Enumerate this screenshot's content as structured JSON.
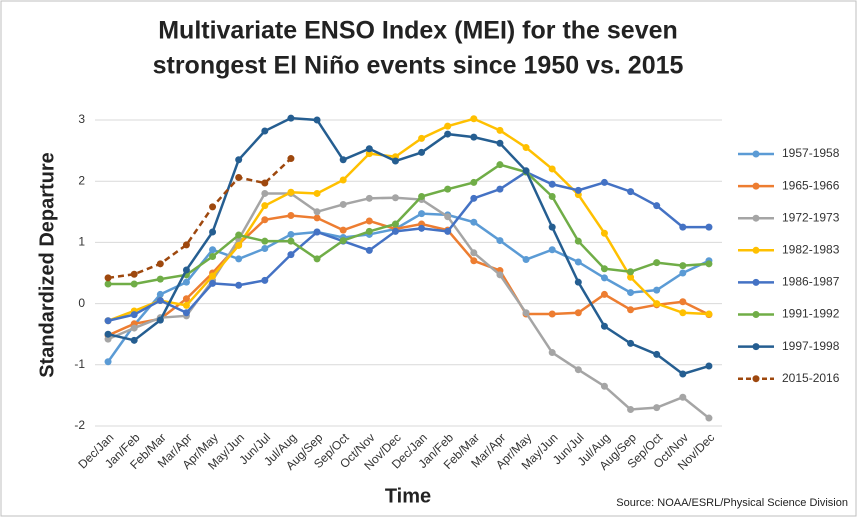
{
  "chart_data": {
    "type": "line",
    "title": "Multivariate ENSO Index (MEI) for the seven",
    "subtitle": "strongest El Niño events since 1950 vs. 2015",
    "x_label": "Time",
    "y_label": "Standardized Departure",
    "source": "Source: NOAA/ESRL/Physical Science Division",
    "categories": [
      "Dec/Jan",
      "Jan/Feb",
      "Feb/Mar",
      "Mar/Apr",
      "Apr/May",
      "May/Jun",
      "Jun/Jul",
      "Jul/Aug",
      "Aug/Sep",
      "Sep/Oct",
      "Oct/Nov",
      "Nov/Dec",
      "Dec/Jan",
      "Jan/Feb",
      "Feb/Mar",
      "Mar/Apr",
      "Apr/May",
      "May/Jun",
      "Jun/Jul",
      "Jul/Aug",
      "Aug/Sep",
      "Sep/Oct",
      "Oct/Nov",
      "Nov/Dec"
    ],
    "ylim": [
      -2,
      3
    ],
    "yticks": [
      -2,
      -1,
      0,
      1,
      2,
      3
    ],
    "grid": true,
    "legend": "right",
    "series": [
      {
        "name": "1957-1958",
        "color": "#5b9bd5",
        "dashed": false,
        "values": [
          -0.95,
          -0.35,
          0.15,
          0.35,
          0.88,
          0.73,
          0.9,
          1.13,
          1.17,
          1.08,
          1.13,
          1.22,
          1.47,
          1.45,
          1.33,
          1.03,
          0.72,
          0.88,
          0.68,
          0.42,
          0.18,
          0.22,
          0.5,
          0.7
        ]
      },
      {
        "name": "1965-1966",
        "color": "#ed7d31",
        "dashed": false,
        "values": [
          -0.52,
          -0.33,
          -0.25,
          0.08,
          0.5,
          0.97,
          1.37,
          1.44,
          1.4,
          1.2,
          1.35,
          1.22,
          1.3,
          1.2,
          0.7,
          0.54,
          -0.17,
          -0.17,
          -0.15,
          0.15,
          -0.1,
          -0.02,
          0.03,
          -0.18
        ]
      },
      {
        "name": "1972-1973",
        "color": "#a5a5a5",
        "dashed": false,
        "values": [
          -0.58,
          -0.4,
          -0.23,
          -0.2,
          0.38,
          1.05,
          1.8,
          1.8,
          1.5,
          1.62,
          1.72,
          1.73,
          1.7,
          1.42,
          0.83,
          0.47,
          -0.15,
          -0.8,
          -1.08,
          -1.35,
          -1.73,
          -1.7,
          -1.53,
          -1.87
        ]
      },
      {
        "name": "1982-1983",
        "color": "#ffc000",
        "dashed": false,
        "values": [
          -0.28,
          -0.12,
          0.05,
          -0.03,
          0.45,
          0.95,
          1.6,
          1.82,
          1.8,
          2.02,
          2.45,
          2.4,
          2.7,
          2.9,
          3.02,
          2.83,
          2.55,
          2.2,
          1.78,
          1.15,
          0.43,
          0.0,
          -0.15,
          -0.17
        ]
      },
      {
        "name": "1986-1987",
        "color": "#4472c4",
        "dashed": false,
        "values": [
          -0.28,
          -0.18,
          0.05,
          -0.15,
          0.33,
          0.3,
          0.38,
          0.8,
          1.17,
          1.02,
          0.87,
          1.18,
          1.23,
          1.18,
          1.72,
          1.87,
          2.15,
          1.95,
          1.85,
          1.98,
          1.83,
          1.6,
          1.25,
          1.25
        ]
      },
      {
        "name": "1991-1992",
        "color": "#70ad47",
        "dashed": false,
        "values": [
          0.32,
          0.32,
          0.4,
          0.47,
          0.77,
          1.12,
          1.02,
          1.02,
          0.73,
          1.03,
          1.18,
          1.3,
          1.75,
          1.87,
          1.98,
          2.27,
          2.15,
          1.75,
          1.02,
          0.57,
          0.52,
          0.67,
          0.62,
          0.65
        ]
      },
      {
        "name": "1997-1998",
        "color": "#255e91",
        "dashed": false,
        "values": [
          -0.5,
          -0.6,
          -0.27,
          0.55,
          1.17,
          2.35,
          2.82,
          3.03,
          3.0,
          2.35,
          2.53,
          2.33,
          2.47,
          2.77,
          2.72,
          2.62,
          2.17,
          1.25,
          0.35,
          -0.37,
          -0.65,
          -0.83,
          -1.15,
          -1.02
        ]
      },
      {
        "name": "2015-2016",
        "color": "#9e480e",
        "dashed": true,
        "values": [
          0.42,
          0.48,
          0.65,
          0.96,
          1.58,
          2.06,
          1.97,
          2.37,
          null,
          null,
          null,
          null,
          null,
          null,
          null,
          null,
          null,
          null,
          null,
          null,
          null,
          null,
          null,
          null
        ]
      }
    ]
  }
}
